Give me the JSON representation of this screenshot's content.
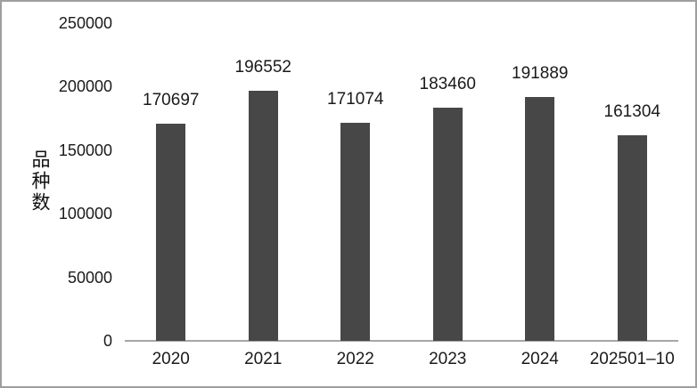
{
  "chart_data": {
    "type": "bar",
    "title": "",
    "xlabel": "",
    "ylabel": "品种数",
    "categories": [
      "2020",
      "2021",
      "2022",
      "2023",
      "2024",
      "202501–10"
    ],
    "values": [
      170697,
      196552,
      171074,
      183460,
      191889,
      161304
    ],
    "value_labels": [
      "170697",
      "196552",
      "171074",
      "183460",
      "191889",
      "161304"
    ],
    "ylim": [
      0,
      250000
    ],
    "yticks": [
      0,
      50000,
      100000,
      150000,
      200000,
      250000
    ],
    "ytick_labels": [
      "0",
      "50000",
      "100000",
      "150000",
      "200000",
      "250000"
    ],
    "grid": false,
    "legend": null,
    "bar_color": "#474747",
    "axis_line_color": "#a6a6a6",
    "text_color": "#1a1a1a",
    "frame_border_color": "#9e9e9e"
  }
}
